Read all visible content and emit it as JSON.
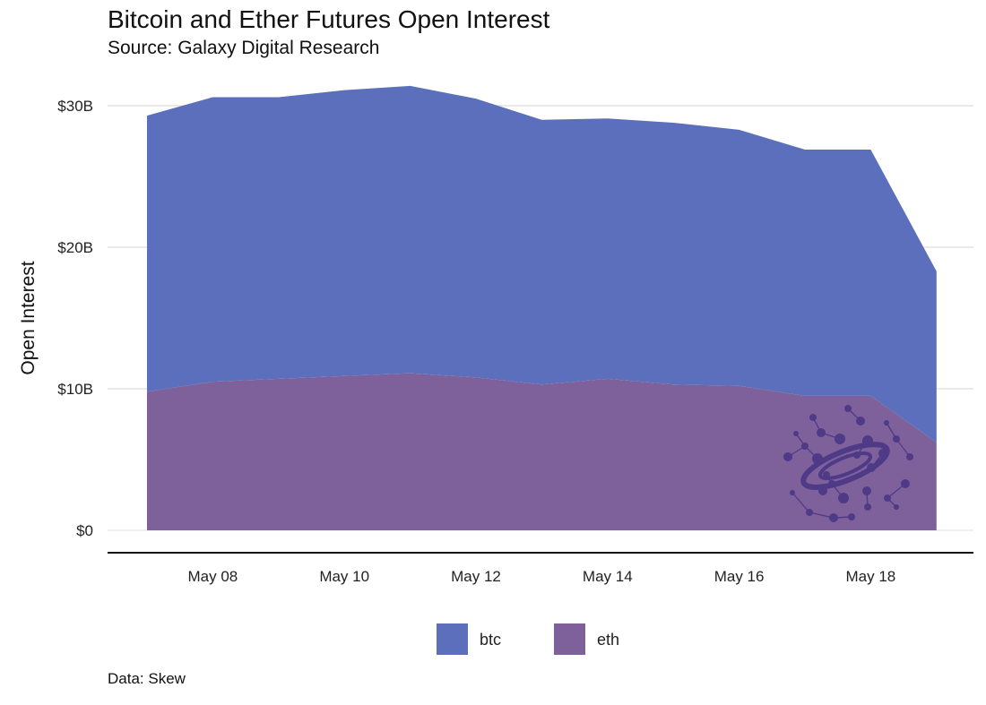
{
  "title": "Bitcoin and Ether Futures Open Interest",
  "subtitle": "Source: Galaxy Digital Research",
  "caption": "Data: Skew",
  "logo_icon": "galaxy-logo-icon",
  "chart_data": {
    "type": "area",
    "stacked": true,
    "x": [
      "2021-05-07",
      "2021-05-08",
      "2021-05-09",
      "2021-05-10",
      "2021-05-11",
      "2021-05-12",
      "2021-05-13",
      "2021-05-14",
      "2021-05-15",
      "2021-05-16",
      "2021-05-17",
      "2021-05-18",
      "2021-05-19"
    ],
    "x_tick_labels": [
      "May 08",
      "May 10",
      "May 12",
      "May 14",
      "May 16",
      "May 18"
    ],
    "x_tick_dates": [
      "2021-05-08",
      "2021-05-10",
      "2021-05-12",
      "2021-05-14",
      "2021-05-16",
      "2021-05-18"
    ],
    "ylabel": "Open Interest",
    "y_tick_labels": [
      "$0",
      "$10B",
      "$20B",
      "$30B"
    ],
    "y_tick_values": [
      0,
      10,
      20,
      30
    ],
    "ylim": [
      0,
      32
    ],
    "grid": true,
    "legend_position": "bottom",
    "series": [
      {
        "name": "btc",
        "color": "#5b6fbc",
        "values": [
          19.5,
          20.1,
          19.9,
          20.2,
          20.3,
          19.7,
          18.7,
          18.4,
          18.5,
          18.1,
          17.4,
          17.4,
          12.1
        ]
      },
      {
        "name": "eth",
        "color": "#7e609b",
        "values": [
          9.8,
          10.5,
          10.7,
          10.9,
          11.1,
          10.8,
          10.3,
          10.7,
          10.3,
          10.2,
          9.5,
          9.5,
          6.2
        ]
      }
    ]
  }
}
